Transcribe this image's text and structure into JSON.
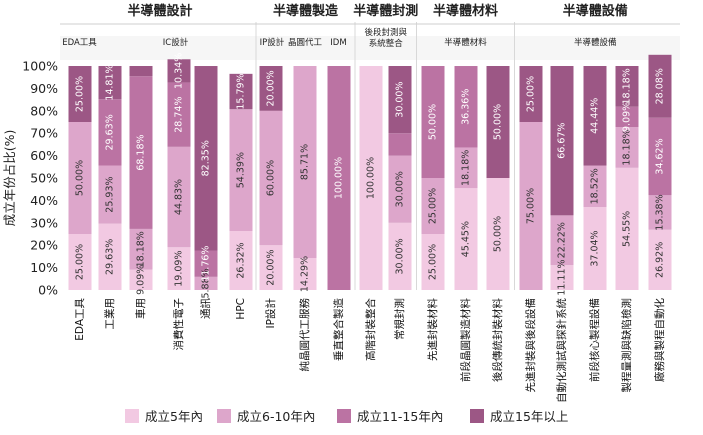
{
  "chart_data": {
    "type": "bar",
    "stacked": true,
    "ylabel": "成立年份占比(%)",
    "ylim": [
      0,
      100
    ],
    "yticks": [
      "0%",
      "10%",
      "20%",
      "30%",
      "40%",
      "50%",
      "60%",
      "70%",
      "80%",
      "90%",
      "100%"
    ],
    "groups": [
      {
        "title": "半導體設計",
        "count": 6
      },
      {
        "title": "半導體製造",
        "count": 3
      },
      {
        "title": "半導體封測",
        "count": 2
      },
      {
        "title": "半導體材料",
        "count": 3
      },
      {
        "title": "半導體設備",
        "count": 5
      }
    ],
    "subgroups": [
      {
        "title": "EDA工具",
        "count": 1
      },
      {
        "title": "IC設計",
        "count": 5
      },
      {
        "title": "IP設計",
        "count": 1
      },
      {
        "title": "晶圓代工",
        "count": 1
      },
      {
        "title": "IDM",
        "count": 1
      },
      {
        "title": "後段封測與",
        "title2": "系統整合",
        "count": 2
      },
      {
        "title": "半導體材料",
        "count": 3
      },
      {
        "title": "半導體設備",
        "count": 5
      }
    ],
    "categories": [
      "EDA工具",
      "工業用",
      "車用",
      "消費性電子",
      "通訊",
      "HPC",
      "IP設計",
      "純晶圓代工服務",
      "垂直整合製造",
      "高階封裝整合",
      "常規封測",
      "先進封裝材料",
      "前段晶圓製造材料",
      "後段傳統封裝材料",
      "先進封裝與後段設備",
      "自動化測試與探針系統",
      "前段核心製程設備",
      "製程量測與缺陷檢測",
      "廠務與製程自動化"
    ],
    "series": [
      {
        "name": "成立5年內",
        "color": "#f2c9e2",
        "values": [
          25.0,
          29.63,
          9.09,
          19.09,
          0,
          26.32,
          20.0,
          14.29,
          0,
          100.0,
          30.0,
          25.0,
          45.45,
          50.0,
          0,
          11.11,
          37.04,
          54.55,
          26.92
        ],
        "labels": [
          "25.00%",
          "29.63%",
          "9.09%",
          "19.09%",
          "",
          "26.32%",
          "20.00%",
          "14.29%",
          "",
          "100.00%",
          "30.00%",
          "25.00%",
          "45.45%",
          "50.00%",
          "",
          "11.11%",
          "37.04%",
          "54.55%",
          "26.92%"
        ]
      },
      {
        "name": "成立6-10年內",
        "color": "#dda6cb",
        "values": [
          50.0,
          25.93,
          18.18,
          44.83,
          5.88,
          54.39,
          60.0,
          85.71,
          0,
          0,
          30.0,
          25.0,
          18.18,
          0,
          75.0,
          22.22,
          18.52,
          18.18,
          15.38
        ],
        "labels": [
          "50.00%",
          "25.93%",
          "18.18%",
          "44.83%",
          "5.88%",
          "54.39%",
          "60.00%",
          "85.71%",
          "",
          "",
          "30.00%",
          "25.00%",
          "18.18%",
          "",
          "75.00%",
          "22.22%",
          "18.52%",
          "18.18%",
          "15.38%"
        ]
      },
      {
        "name": "成立11-15年內",
        "color": "#bb73a3",
        "values": [
          0,
          29.63,
          68.18,
          28.74,
          11.76,
          0,
          0,
          0,
          100.0,
          0,
          10.0,
          50.0,
          36.36,
          0,
          0,
          0,
          0,
          9.09,
          34.62
        ],
        "labels": [
          "",
          "29.63%",
          "68.18%",
          "28.74%",
          "11.76%",
          "",
          "",
          "",
          "100.00%",
          "",
          "",
          "50.00%",
          "36.36%",
          "",
          "",
          "",
          "",
          "9.09%",
          "34.62%"
        ]
      },
      {
        "name": "成立15年以上",
        "color": "#9c5785",
        "values": [
          25.0,
          14.81,
          4.55,
          10.34,
          82.35,
          15.79,
          20.0,
          0,
          0,
          0,
          30.0,
          0,
          0,
          50.0,
          25.0,
          66.67,
          44.44,
          18.18,
          28.08
        ],
        "labels": [
          "25.00%",
          "14.81%",
          "",
          "10.34%",
          "82.35%",
          "15.79%",
          "20.00%",
          "",
          "",
          "",
          "30.00%",
          "",
          "",
          "50.00%",
          "25.00%",
          "66.67%",
          "44.44%",
          "18.18%",
          "28.08%"
        ]
      }
    ],
    "legend": {
      "position": "bottom"
    },
    "grid": false
  }
}
